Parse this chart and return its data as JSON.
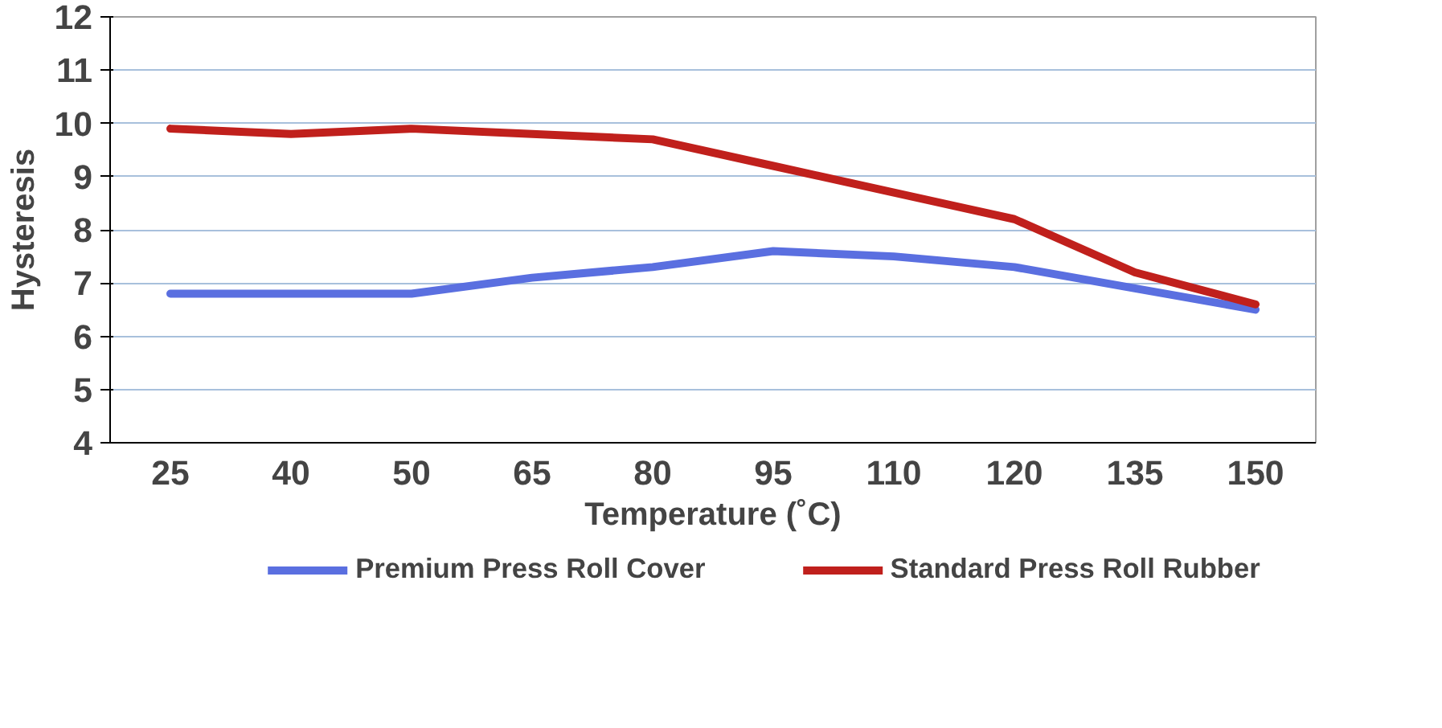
{
  "chart_data": {
    "type": "line",
    "xlabel": "Temperature (˚C)",
    "ylabel": "Hysteresis",
    "categories": [
      "25",
      "40",
      "50",
      "65",
      "80",
      "95",
      "110",
      "120",
      "135",
      "150"
    ],
    "series": [
      {
        "name": "Premium Press Roll Cover",
        "color": "#5a6fe0",
        "values": [
          6.8,
          6.8,
          6.8,
          7.1,
          7.3,
          7.6,
          7.5,
          7.3,
          6.9,
          6.5
        ]
      },
      {
        "name": "Standard Press Roll Rubber",
        "color": "#c0201c",
        "values": [
          9.9,
          9.8,
          9.9,
          9.8,
          9.7,
          9.2,
          8.7,
          8.2,
          7.2,
          6.6
        ]
      }
    ],
    "ylim": [
      4,
      12
    ],
    "yticks": [
      4,
      5,
      6,
      7,
      8,
      9,
      10,
      11,
      12
    ],
    "grid": "y",
    "legend": "bottom",
    "line_style": "solid",
    "marker": "none"
  }
}
